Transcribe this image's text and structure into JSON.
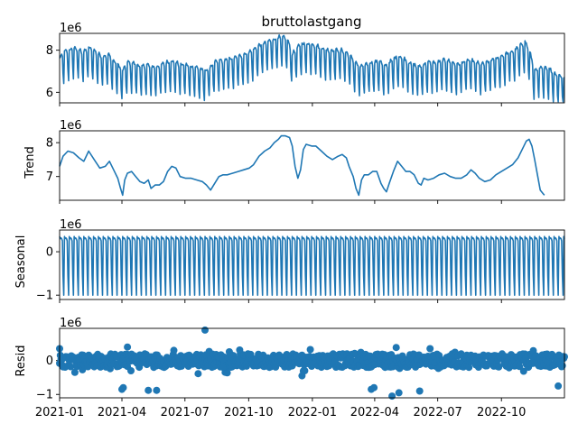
{
  "chart_data": [
    {
      "type": "line",
      "title": "bruttolastgang",
      "ylabel": "",
      "offset_label": "1e6",
      "ylim": [
        5.5,
        8.8
      ],
      "yticks": [
        6,
        8
      ],
      "ytick_labels": [
        "6",
        "8"
      ],
      "x_start": "2021-01-01",
      "x_end": "2022-12-31",
      "series": [
        {
          "values": [
            [
              0,
              7.2
            ],
            [
              7,
              7.5
            ],
            [
              14,
              7.6
            ],
            [
              21,
              7.7
            ],
            [
              28,
              7.6
            ],
            [
              35,
              7.5
            ],
            [
              42,
              7.7
            ],
            [
              49,
              7.6
            ],
            [
              56,
              7.4
            ],
            [
              63,
              7.3
            ],
            [
              70,
              7.4
            ],
            [
              77,
              7.1
            ],
            [
              84,
              6.9
            ],
            [
              91,
              6.6
            ],
            [
              98,
              7.0
            ],
            [
              105,
              7.0
            ],
            [
              112,
              6.9
            ],
            [
              119,
              6.8
            ],
            [
              126,
              6.9
            ],
            [
              133,
              6.8
            ],
            [
              140,
              6.8
            ],
            [
              147,
              6.9
            ],
            [
              154,
              7.0
            ],
            [
              161,
              7.1
            ],
            [
              168,
              7.0
            ],
            [
              175,
              6.9
            ],
            [
              182,
              6.9
            ],
            [
              189,
              6.8
            ],
            [
              196,
              6.8
            ],
            [
              203,
              6.7
            ],
            [
              210,
              6.6
            ],
            [
              217,
              6.8
            ],
            [
              224,
              7.0
            ],
            [
              231,
              7.1
            ],
            [
              238,
              7.1
            ],
            [
              245,
              7.2
            ],
            [
              252,
              7.2
            ],
            [
              259,
              7.3
            ],
            [
              266,
              7.4
            ],
            [
              273,
              7.5
            ],
            [
              280,
              7.6
            ],
            [
              287,
              7.8
            ],
            [
              294,
              7.9
            ],
            [
              301,
              8.0
            ],
            [
              308,
              8.1
            ],
            [
              315,
              8.2
            ],
            [
              322,
              8.2
            ],
            [
              329,
              8.1
            ],
            [
              336,
              7.4
            ],
            [
              343,
              7.7
            ],
            [
              350,
              7.9
            ],
            [
              357,
              7.9
            ],
            [
              364,
              7.9
            ],
            [
              371,
              7.8
            ],
            [
              378,
              7.7
            ],
            [
              385,
              7.6
            ],
            [
              392,
              7.6
            ],
            [
              399,
              7.6
            ],
            [
              406,
              7.6
            ],
            [
              413,
              7.5
            ],
            [
              420,
              7.3
            ],
            [
              427,
              7.0
            ],
            [
              434,
              6.8
            ],
            [
              441,
              6.9
            ],
            [
              448,
              7.0
            ],
            [
              455,
              7.0
            ],
            [
              462,
              7.1
            ],
            [
              469,
              6.8
            ],
            [
              476,
              7.0
            ],
            [
              483,
              7.2
            ],
            [
              490,
              7.3
            ],
            [
              497,
              7.2
            ],
            [
              504,
              7.0
            ],
            [
              511,
              6.9
            ],
            [
              518,
              6.8
            ],
            [
              525,
              6.9
            ],
            [
              532,
              7.0
            ],
            [
              539,
              7.0
            ],
            [
              546,
              7.0
            ],
            [
              553,
              7.1
            ],
            [
              560,
              7.1
            ],
            [
              567,
              7.0
            ],
            [
              574,
              6.9
            ],
            [
              581,
              7.0
            ],
            [
              588,
              7.1
            ],
            [
              595,
              7.1
            ],
            [
              602,
              7.0
            ],
            [
              609,
              6.9
            ],
            [
              616,
              7.0
            ],
            [
              623,
              7.1
            ],
            [
              630,
              7.2
            ],
            [
              637,
              7.3
            ],
            [
              644,
              7.4
            ],
            [
              651,
              7.5
            ],
            [
              658,
              7.6
            ],
            [
              665,
              7.8
            ],
            [
              672,
              8.0
            ],
            [
              679,
              7.5
            ],
            [
              686,
              6.6
            ],
            [
              693,
              6.7
            ],
            [
              700,
              6.8
            ],
            [
              707,
              6.7
            ],
            [
              714,
              6.5
            ],
            [
              721,
              6.4
            ],
            [
              728,
              6.3
            ]
          ]
        }
      ]
    },
    {
      "type": "line",
      "title": "",
      "ylabel": "Trend",
      "offset_label": "1e6",
      "ylim": [
        6.3,
        8.35
      ],
      "yticks": [
        7,
        8
      ],
      "ytick_labels": [
        "7",
        "8"
      ],
      "x_start": "2021-01-01",
      "x_end": "2022-12-31",
      "series": [
        {
          "values": [
            [
              0,
              7.3
            ],
            [
              5,
              7.6
            ],
            [
              12,
              7.75
            ],
            [
              20,
              7.7
            ],
            [
              28,
              7.55
            ],
            [
              35,
              7.45
            ],
            [
              42,
              7.75
            ],
            [
              50,
              7.5
            ],
            [
              58,
              7.25
            ],
            [
              66,
              7.3
            ],
            [
              72,
              7.45
            ],
            [
              78,
              7.2
            ],
            [
              84,
              6.95
            ],
            [
              88,
              6.65
            ],
            [
              91,
              6.45
            ],
            [
              94,
              6.9
            ],
            [
              98,
              7.1
            ],
            [
              104,
              7.15
            ],
            [
              110,
              7.0
            ],
            [
              116,
              6.85
            ],
            [
              122,
              6.8
            ],
            [
              128,
              6.9
            ],
            [
              132,
              6.65
            ],
            [
              138,
              6.75
            ],
            [
              144,
              6.75
            ],
            [
              150,
              6.85
            ],
            [
              156,
              7.15
            ],
            [
              162,
              7.3
            ],
            [
              168,
              7.25
            ],
            [
              174,
              7.0
            ],
            [
              182,
              6.95
            ],
            [
              190,
              6.95
            ],
            [
              198,
              6.9
            ],
            [
              206,
              6.85
            ],
            [
              212,
              6.75
            ],
            [
              218,
              6.6
            ],
            [
              224,
              6.8
            ],
            [
              230,
              7.0
            ],
            [
              236,
              7.05
            ],
            [
              242,
              7.05
            ],
            [
              250,
              7.1
            ],
            [
              258,
              7.15
            ],
            [
              266,
              7.2
            ],
            [
              274,
              7.25
            ],
            [
              280,
              7.35
            ],
            [
              288,
              7.6
            ],
            [
              296,
              7.75
            ],
            [
              304,
              7.85
            ],
            [
              310,
              8.0
            ],
            [
              316,
              8.1
            ],
            [
              320,
              8.2
            ],
            [
              326,
              8.2
            ],
            [
              332,
              8.15
            ],
            [
              336,
              7.9
            ],
            [
              340,
              7.3
            ],
            [
              344,
              6.95
            ],
            [
              348,
              7.2
            ],
            [
              352,
              7.8
            ],
            [
              356,
              7.95
            ],
            [
              364,
              7.9
            ],
            [
              370,
              7.9
            ],
            [
              378,
              7.75
            ],
            [
              386,
              7.6
            ],
            [
              394,
              7.5
            ],
            [
              402,
              7.6
            ],
            [
              408,
              7.65
            ],
            [
              414,
              7.55
            ],
            [
              418,
              7.3
            ],
            [
              424,
              7.0
            ],
            [
              428,
              6.65
            ],
            [
              432,
              6.45
            ],
            [
              436,
              6.9
            ],
            [
              440,
              7.05
            ],
            [
              446,
              7.05
            ],
            [
              452,
              7.15
            ],
            [
              458,
              7.15
            ],
            [
              464,
              6.8
            ],
            [
              468,
              6.65
            ],
            [
              472,
              6.55
            ],
            [
              476,
              6.8
            ],
            [
              482,
              7.15
            ],
            [
              488,
              7.45
            ],
            [
              494,
              7.3
            ],
            [
              500,
              7.15
            ],
            [
              506,
              7.15
            ],
            [
              512,
              7.05
            ],
            [
              518,
              6.8
            ],
            [
              522,
              6.75
            ],
            [
              526,
              6.95
            ],
            [
              532,
              6.9
            ],
            [
              540,
              6.95
            ],
            [
              548,
              7.05
            ],
            [
              556,
              7.1
            ],
            [
              564,
              7.0
            ],
            [
              572,
              6.95
            ],
            [
              580,
              6.95
            ],
            [
              588,
              7.05
            ],
            [
              594,
              7.2
            ],
            [
              600,
              7.1
            ],
            [
              606,
              6.95
            ],
            [
              614,
              6.85
            ],
            [
              622,
              6.9
            ],
            [
              630,
              7.05
            ],
            [
              638,
              7.15
            ],
            [
              646,
              7.25
            ],
            [
              654,
              7.35
            ],
            [
              662,
              7.55
            ],
            [
              668,
              7.8
            ],
            [
              674,
              8.05
            ],
            [
              678,
              8.1
            ],
            [
              682,
              7.9
            ],
            [
              686,
              7.5
            ],
            [
              690,
              7.05
            ],
            [
              694,
              6.6
            ],
            [
              698,
              6.5
            ],
            [
              700,
              6.45
            ]
          ]
        }
      ]
    },
    {
      "type": "line",
      "title": "",
      "ylabel": "Seasonal",
      "offset_label": "1e6",
      "ylim": [
        -1.1,
        0.5
      ],
      "yticks": [
        0,
        -1
      ],
      "ytick_labels": [
        "0",
        "−1"
      ],
      "x_start": "2021-01-01",
      "x_end": "2022-12-31",
      "period_days": 7,
      "pattern": [
        0.35,
        0.3,
        0.32,
        0.3,
        0.25,
        -0.55,
        -1.0
      ]
    },
    {
      "type": "scatter",
      "title": "",
      "ylabel": "Resid",
      "offset_label": "1e6",
      "ylim": [
        -1.1,
        0.95
      ],
      "yticks": [
        0,
        -1
      ],
      "ytick_labels": [
        "0",
        "−1"
      ],
      "xticks": [
        "2021-01",
        "2021-04",
        "2021-07",
        "2021-10",
        "2022-01",
        "2022-04",
        "2022-07",
        "2022-10"
      ],
      "x_start": "2021-01-01",
      "x_end": "2022-12-31",
      "outliers": [
        [
          0,
          0.35
        ],
        [
          90,
          -0.85
        ],
        [
          92,
          -0.8
        ],
        [
          98,
          0.4
        ],
        [
          128,
          -0.88
        ],
        [
          140,
          -0.88
        ],
        [
          165,
          0.3
        ],
        [
          210,
          0.9
        ],
        [
          236,
          -0.2
        ],
        [
          350,
          -0.45
        ],
        [
          354,
          -0.3
        ],
        [
          450,
          -0.85
        ],
        [
          454,
          -0.8
        ],
        [
          470,
          -0.2
        ],
        [
          480,
          -1.05
        ],
        [
          490,
          -0.95
        ],
        [
          520,
          -0.9
        ],
        [
          535,
          0.35
        ],
        [
          720,
          -0.75
        ]
      ]
    }
  ]
}
